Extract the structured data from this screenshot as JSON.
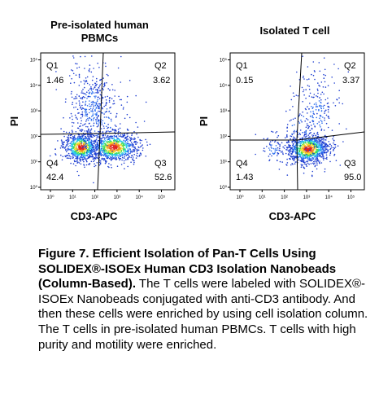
{
  "panels": [
    {
      "title": "Pre-isolated human PBMCs",
      "x_label": "CD3-APC",
      "y_label": "PI",
      "quadrants": [
        {
          "name": "Q1",
          "value": "1.46"
        },
        {
          "name": "Q2",
          "value": "3.62"
        },
        {
          "name": "Q4",
          "value": "42.4"
        },
        {
          "name": "Q3",
          "value": "52.6"
        }
      ],
      "x_ticks": [
        "10⁰",
        "10¹",
        "10²",
        "10³",
        "10⁴",
        "10⁵"
      ],
      "y_ticks": [
        "10⁰",
        "10¹",
        "10²",
        "10³",
        "10⁴",
        "10⁵"
      ]
    },
    {
      "title": "Isolated T cell",
      "x_label": "CD3-APC",
      "y_label": "PI",
      "quadrants": [
        {
          "name": "Q1",
          "value": "0.15"
        },
        {
          "name": "Q2",
          "value": "3.37"
        },
        {
          "name": "Q4",
          "value": "1.43"
        },
        {
          "name": "Q3",
          "value": "95.0"
        }
      ],
      "x_ticks": [
        "10⁰",
        "10¹",
        "10²",
        "10³",
        "10⁴",
        "10⁵"
      ],
      "y_ticks": [
        "10⁰",
        "10¹",
        "10²",
        "10³",
        "10⁴",
        "10⁵"
      ]
    }
  ],
  "caption": {
    "heading": "Figure 7. Efficient Isolation of Pan-T Cells Using SOLIDEX®-ISOEx Human CD3 Isolation Nanobeads (Column-Based).",
    "body": "The T cells were labeled with SOLIDEX®-ISOEx Nanobeads conjugated with anti-CD3 antibody. And then these cells were enriched by using cell isolation column. The T cells in pre-isolated human PBMCs. T cells with high purity and motility were enriched."
  }
}
